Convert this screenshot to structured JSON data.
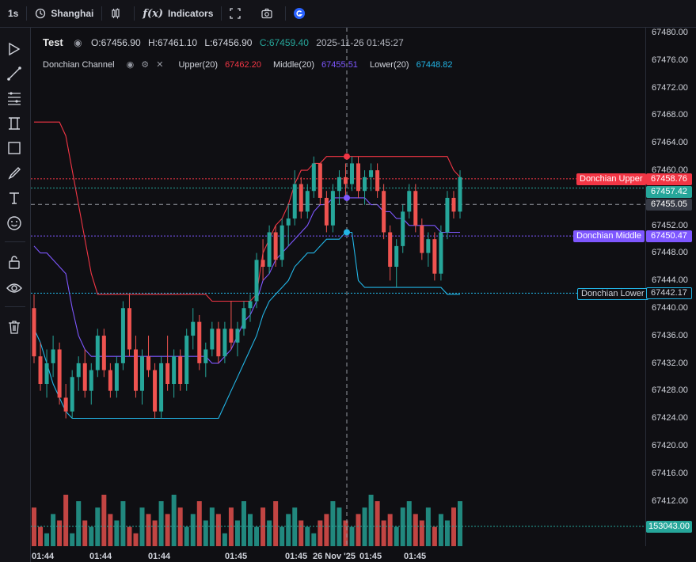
{
  "toolbar": {
    "interval": "1s",
    "timezone": "Shanghai",
    "indicators_label": "Indicators",
    "fx_label": "f(x)"
  },
  "legend": {
    "symbol": "Test",
    "open": "O:67456.90",
    "high": "H:67461.10",
    "low": "L:67456.90",
    "close": "C:67459.40",
    "datetime": "2025-11-26 01:45:27",
    "indicator_name": "Donchian Channel",
    "upper_label": "Upper(20)",
    "upper_value": "67462.20",
    "middle_label": "Middle(20)",
    "middle_value": "67455.51",
    "lower_label": "Lower(20)",
    "lower_value": "67448.82"
  },
  "colors": {
    "up": "#26a69a",
    "down": "#ef5350",
    "upper": "#f23645",
    "middle": "#7e57ff",
    "lower": "#22b5e6",
    "background": "#0f0f13"
  },
  "price_axis": {
    "ticks": [
      "67480.00",
      "67476.00",
      "67472.00",
      "67468.00",
      "67464.00",
      "67460.00",
      "67455.05",
      "67452.00",
      "67448.00",
      "67444.00",
      "67440.00",
      "67436.00",
      "67432.00",
      "67428.00",
      "67424.00",
      "67420.00",
      "67416.00",
      "67412.00"
    ],
    "crosshair_price": "67455.05",
    "upper_tag": "67458.76",
    "last_price_tag": "67457.42",
    "middle_tag": "67450.47",
    "lower_tag": "67442.17",
    "volume_tag": "153043.00",
    "upper_name": "Donchian Upper",
    "middle_name": "Donchian Middle",
    "lower_name": "Donchian Lower"
  },
  "time_axis": {
    "labels": [
      "01:44",
      "01:44",
      "01:44",
      "01:45",
      "01:45",
      "26 Nov '25",
      "01:45",
      "01:45"
    ]
  },
  "chart_data": {
    "type": "candlestick",
    "y_range": [
      67406,
      67482
    ],
    "candles": [
      [
        67440,
        67442,
        67432,
        67433
      ],
      [
        67433,
        67435,
        67428,
        67429
      ],
      [
        67429,
        67434,
        67427,
        67432
      ],
      [
        67432,
        67436,
        67430,
        67434
      ],
      [
        67434,
        67435,
        67426,
        67427
      ],
      [
        67427,
        67429,
        67424,
        67425
      ],
      [
        67425,
        67431,
        67424,
        67430
      ],
      [
        67430,
        67433,
        67428,
        67432
      ],
      [
        67432,
        67434,
        67427,
        67428
      ],
      [
        67428,
        67432,
        67426,
        67431
      ],
      [
        67431,
        67437,
        67430,
        67436
      ],
      [
        67436,
        67437,
        67430,
        67431
      ],
      [
        67431,
        67432,
        67427,
        67428
      ],
      [
        67428,
        67433,
        67427,
        67432
      ],
      [
        67432,
        67441,
        67431,
        67440
      ],
      [
        67440,
        67442,
        67433,
        67434
      ],
      [
        67434,
        67436,
        67427,
        67428
      ],
      [
        67428,
        67434,
        67426,
        67433
      ],
      [
        67433,
        67436,
        67430,
        67431
      ],
      [
        67431,
        67432,
        67424,
        67425
      ],
      [
        67425,
        67433,
        67424,
        67432
      ],
      [
        67432,
        67436,
        67428,
        67429
      ],
      [
        67429,
        67434,
        67427,
        67433
      ],
      [
        67433,
        67434,
        67428,
        67429
      ],
      [
        67429,
        67437,
        67428,
        67436
      ],
      [
        67436,
        67440,
        67434,
        67438
      ],
      [
        67438,
        67439,
        67431,
        67432
      ],
      [
        67432,
        67435,
        67430,
        67434
      ],
      [
        67434,
        67438,
        67433,
        67437
      ],
      [
        67437,
        67438,
        67432,
        67433
      ],
      [
        67433,
        67438,
        67432,
        67437
      ],
      [
        67437,
        67441,
        67434,
        67435
      ],
      [
        67435,
        67438,
        67433,
        67437
      ],
      [
        67437,
        67441,
        67436,
        67440
      ],
      [
        67440,
        67442,
        67438,
        67441
      ],
      [
        67441,
        67448,
        67440,
        67447
      ],
      [
        67447,
        67450,
        67444,
        67446
      ],
      [
        67446,
        67452,
        67445,
        67451
      ],
      [
        67451,
        67452,
        67446,
        67447
      ],
      [
        67447,
        67453,
        67446,
        67452
      ],
      [
        67452,
        67455,
        67449,
        67453
      ],
      [
        67453,
        67460,
        67452,
        67458
      ],
      [
        67458,
        67459,
        67453,
        67454
      ],
      [
        67454,
        67458,
        67453,
        67457
      ],
      [
        67457,
        67462,
        67456,
        67461
      ],
      [
        67461,
        67461,
        67455,
        67456
      ],
      [
        67456,
        67457,
        67451,
        67452
      ],
      [
        67452,
        67458,
        67451,
        67457
      ],
      [
        67457,
        67460,
        67455,
        67459
      ],
      [
        67459,
        67461,
        67456,
        67458
      ],
      [
        67458,
        67462,
        67457,
        67461
      ],
      [
        67461,
        67462,
        67456,
        67457
      ],
      [
        67457,
        67460,
        67455,
        67459
      ],
      [
        67459,
        67461,
        67457,
        67460
      ],
      [
        67460,
        67461,
        67456,
        67457
      ],
      [
        67457,
        67458,
        67450,
        67451
      ],
      [
        67451,
        67452,
        67444,
        67446
      ],
      [
        67446,
        67450,
        67443,
        67449
      ],
      [
        67449,
        67455,
        67448,
        67454
      ],
      [
        67454,
        67458,
        67453,
        67457
      ],
      [
        67457,
        67458,
        67451,
        67452
      ],
      [
        67452,
        67453,
        67447,
        67448
      ],
      [
        67448,
        67451,
        67446,
        67450
      ],
      [
        67450,
        67451,
        67444,
        67445
      ],
      [
        67445,
        67452,
        67444,
        67451
      ],
      [
        67451,
        67457,
        67450,
        67456
      ],
      [
        67456,
        67457,
        67453,
        67454
      ],
      [
        67454,
        67460,
        67453,
        67459
      ]
    ],
    "upper": [
      67467,
      67467,
      67467,
      67467,
      67467,
      67465,
      67460,
      67455,
      67450,
      67445,
      67442,
      67442,
      67442,
      67442,
      67442,
      67442,
      67442,
      67442,
      67442,
      67442,
      67442,
      67442,
      67442,
      67442,
      67442,
      67442,
      67442,
      67442,
      67441,
      67441,
      67441,
      67441,
      67441,
      67441,
      67441,
      67442,
      67448,
      67450,
      67452,
      67453,
      67455,
      67458,
      67460,
      67460,
      67461,
      67461,
      67462,
      67462,
      67462,
      67462,
      67462,
      67462,
      67462,
      67462,
      67462,
      67462,
      67462,
      67462,
      67462,
      67462,
      67462,
      67462,
      67462,
      67462,
      67462,
      67462,
      67460,
      67459
    ],
    "middle": [
      67449,
      67448,
      67448,
      67447,
      67446,
      67445,
      67440,
      67436,
      67434,
      67433,
      67433,
      67433,
      67433,
      67433,
      67433,
      67433,
      67433,
      67433,
      67433,
      67433,
      67433,
      67433,
      67433,
      67433,
      67433,
      67433,
      67433,
      67433,
      67432,
      67432,
      67433,
      67434,
      67436,
      67438,
      67439,
      67441,
      67444,
      67445,
      67447,
      67448,
      67449,
      67450,
      67451,
      67452,
      67454,
      67455,
      67455,
      67456,
      67456,
      67456,
      67456,
      67456,
      67456,
      67455,
      67455,
      67454,
      67454,
      67453,
      67453,
      67452,
      67452,
      67452,
      67452,
      67452,
      67451,
      67451,
      67451,
      67451
    ],
    "lower": [
      67437,
      67435,
      67432,
      67429,
      67427,
      67425,
      67424,
      67424,
      67424,
      67424,
      67424,
      67424,
      67424,
      67424,
      67424,
      67424,
      67424,
      67424,
      67424,
      67424,
      67424,
      67424,
      67424,
      67424,
      67424,
      67424,
      67424,
      67424,
      67424,
      67424,
      67426,
      67428,
      67430,
      67432,
      67434,
      67436,
      67439,
      67441,
      67442,
      67443,
      67444,
      67446,
      67447,
      67448,
      67448,
      67449,
      67450,
      67450,
      67450,
      67451,
      67451,
      67444,
      67443,
      67443,
      67443,
      67443,
      67443,
      67443,
      67443,
      67443,
      67443,
      67443,
      67443,
      67443,
      67443,
      67442,
      67442,
      67442
    ],
    "volume": [
      6,
      3,
      2,
      5,
      4,
      8,
      2,
      7,
      4,
      3,
      6,
      8,
      5,
      4,
      7,
      3,
      2,
      6,
      5,
      4,
      7,
      5,
      8,
      6,
      3,
      5,
      7,
      4,
      6,
      5,
      2,
      6,
      4,
      7,
      5,
      3,
      6,
      4,
      7,
      3,
      5,
      6,
      4,
      3,
      2,
      4,
      5,
      7,
      6,
      4,
      3,
      5,
      6,
      8,
      7,
      4,
      5,
      3,
      6,
      7,
      5,
      4,
      6,
      3,
      5,
      4,
      6,
      7
    ],
    "price_lines": {
      "upper_line": 67458.76,
      "last_price": 67457.42,
      "middle_line": 67450.47,
      "lower_line": 67442.17,
      "crosshair": 67455.05
    }
  }
}
